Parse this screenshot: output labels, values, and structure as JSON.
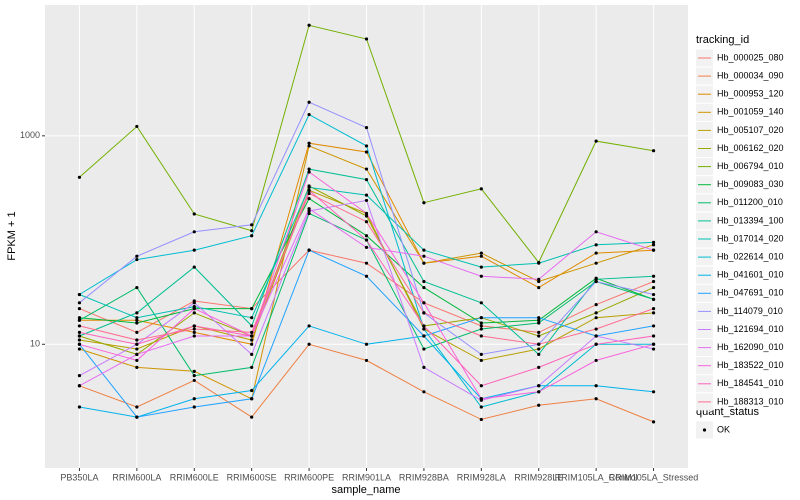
{
  "chart_data": {
    "type": "line",
    "x_label": "sample_name",
    "y_label": "FPKM + 1",
    "log_y": true,
    "grid": true,
    "categories": [
      "PB350LA",
      "RRIM600LA",
      "RRIM600LE",
      "RRIM600SE",
      "RRIM600PE",
      "RRIM901LA",
      "RRIM928BA",
      "RRIM928LA",
      "RRIM928LE",
      "RRIM105LA_Control",
      "RRIM105LA_Stressed"
    ],
    "ylim": [
      0.65,
      18000
    ],
    "yticks": [
      10,
      1000
    ],
    "legend_title": "tracking_id",
    "shape_legend_title": "quant_status",
    "shape_legend_entries": [
      "OK"
    ],
    "point_color": "#000000",
    "series": [
      {
        "name": "Hb_000025_080",
        "color": "#F8766D",
        "values": [
          22,
          13,
          26,
          22,
          80,
          60,
          25,
          15,
          13,
          24,
          40
        ]
      },
      {
        "name": "Hb_000034_090",
        "color": "#EE8043",
        "values": [
          4,
          2.5,
          4.5,
          2,
          10,
          7,
          3.5,
          1.9,
          2.6,
          3,
          1.8
        ]
      },
      {
        "name": "Hb_000953_120",
        "color": "#E18A00",
        "values": [
          17,
          17,
          13,
          10,
          850,
          700,
          60,
          70,
          35,
          75,
          80
        ]
      },
      {
        "name": "Hb_001059_140",
        "color": "#CF9400",
        "values": [
          9,
          6,
          5.5,
          3,
          800,
          480,
          60,
          75,
          40,
          60,
          90
        ]
      },
      {
        "name": "Hb_005107_020",
        "color": "#B79F00",
        "values": [
          11,
          9,
          15,
          11,
          300,
          180,
          14,
          7,
          9,
          18,
          20
        ]
      },
      {
        "name": "Hb_006162_020",
        "color": "#9AA800",
        "values": [
          12,
          8,
          20,
          12,
          330,
          170,
          15,
          18,
          12,
          20,
          35
        ]
      },
      {
        "name": "Hb_006794_010",
        "color": "#72B000",
        "values": [
          400,
          1230,
          178,
          123,
          11500,
          8500,
          228,
          310,
          61,
          890,
          720
        ]
      },
      {
        "name": "Hb_009083_030",
        "color": "#00B83A",
        "values": [
          18,
          16,
          22,
          22,
          250,
          110,
          35,
          16,
          17,
          43,
          27
        ]
      },
      {
        "name": "Hb_011200_010",
        "color": "#00BC6A",
        "values": [
          17,
          35,
          5,
          6,
          180,
          100,
          9,
          14,
          16,
          40,
          27
        ]
      },
      {
        "name": "Hb_013394_100",
        "color": "#00BF92",
        "values": [
          12,
          20,
          55,
          15,
          480,
          380,
          40,
          25,
          8,
          42,
          45
        ]
      },
      {
        "name": "Hb_017014_020",
        "color": "#00C0B2",
        "values": [
          30,
          18,
          23,
          18,
          320,
          270,
          80,
          55,
          60,
          90,
          95
        ]
      },
      {
        "name": "Hb_022614_010",
        "color": "#00BCD2",
        "values": [
          30,
          65,
          80,
          110,
          1600,
          800,
          14,
          2.5,
          3.5,
          10,
          10
        ]
      },
      {
        "name": "Hb_041601_010",
        "color": "#00B2EC",
        "values": [
          2.5,
          2,
          3,
          3.6,
          15,
          10,
          12,
          3,
          4,
          4,
          3.5
        ]
      },
      {
        "name": "Hb_047691_010",
        "color": "#1FA2FF",
        "values": [
          10,
          2,
          2.5,
          3,
          80,
          45,
          12,
          18,
          18,
          12,
          15
        ]
      },
      {
        "name": "Hb_114079_010",
        "color": "#9590FF",
        "values": [
          25,
          70,
          120,
          140,
          2100,
          1200,
          20,
          8,
          10,
          40,
          30
        ]
      },
      {
        "name": "Hb_121694_010",
        "color": "#C77CFF",
        "values": [
          5,
          10,
          25,
          8,
          190,
          240,
          6,
          2.9,
          4,
          12,
          9
        ]
      },
      {
        "name": "Hb_162090_010",
        "color": "#E76BF3",
        "values": [
          4,
          8,
          12,
          12,
          200,
          85,
          70,
          45,
          42,
          120,
          80
        ]
      },
      {
        "name": "Hb_183522_010",
        "color": "#F962DD",
        "values": [
          10,
          7,
          22,
          12,
          450,
          180,
          25,
          3,
          3.5,
          7,
          10
        ]
      },
      {
        "name": "Hb_184541_010",
        "color": "#FF62BC",
        "values": [
          13,
          10,
          15,
          12,
          300,
          100,
          15,
          4,
          6,
          10,
          12
        ]
      },
      {
        "name": "Hb_188313_010",
        "color": "#FF6C91",
        "values": [
          15,
          11,
          14,
          13,
          280,
          150,
          20,
          12,
          10,
          14,
          22
        ]
      }
    ]
  }
}
